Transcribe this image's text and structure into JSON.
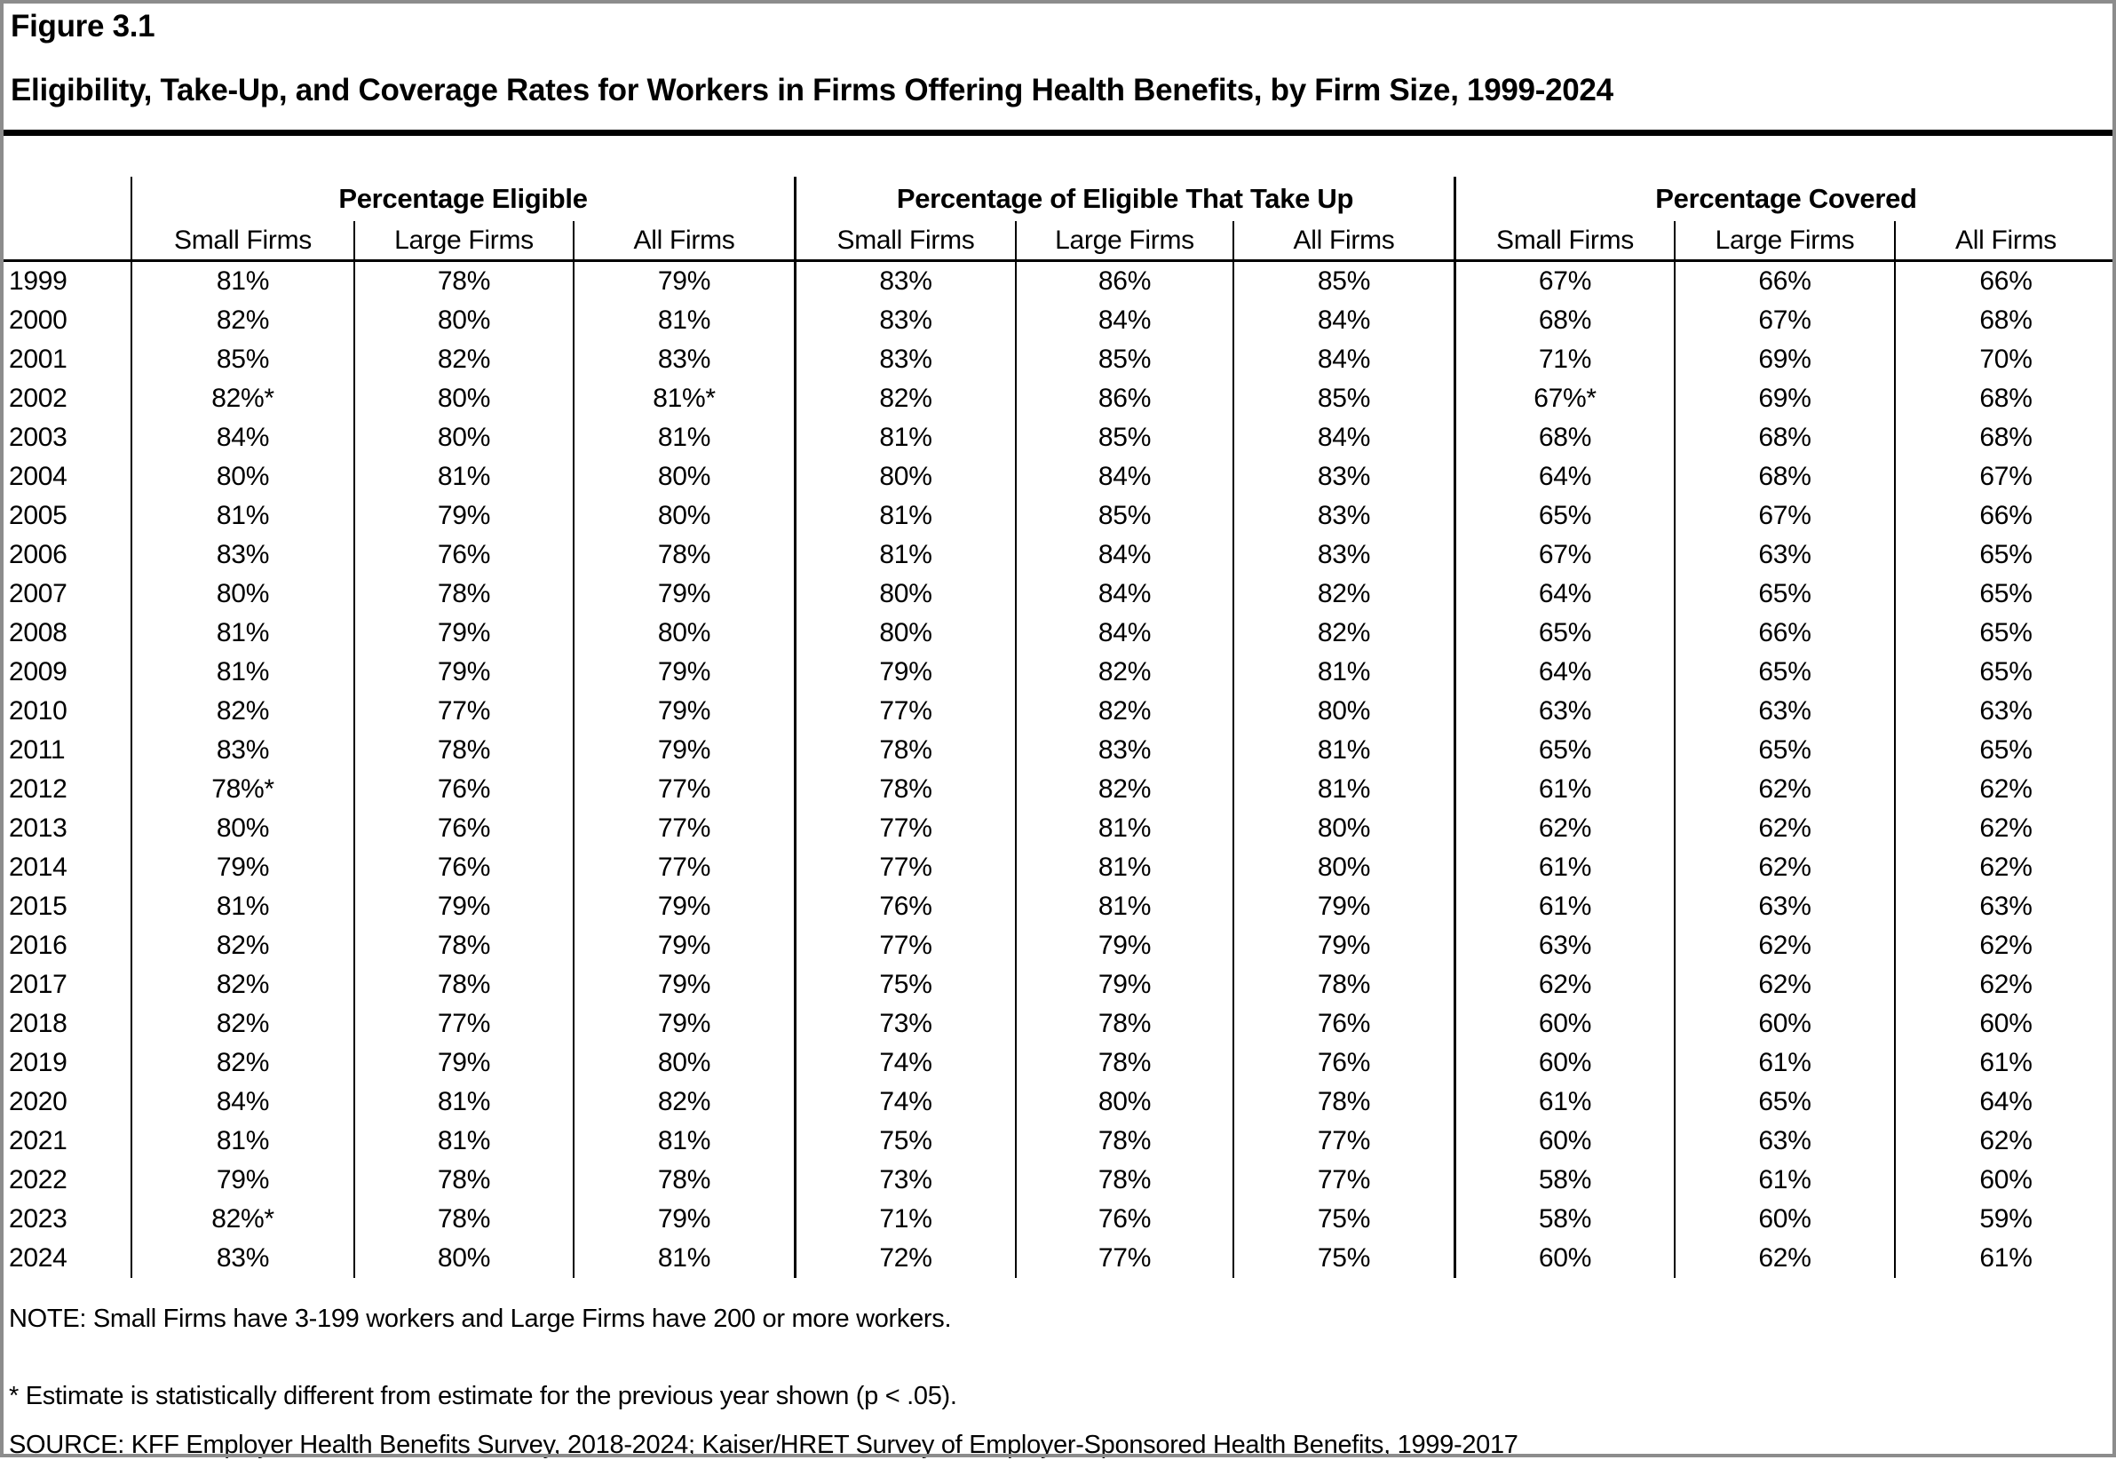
{
  "figure": {
    "label": "Figure 3.1",
    "title": "Eligibility, Take-Up, and Coverage Rates for Workers in Firms Offering Health Benefits, by Firm Size, 1999-2024"
  },
  "colors": {
    "rule": "#000000",
    "frame": "#8c8c8c",
    "text": "#000000",
    "background": "#ffffff"
  },
  "table": {
    "groups": [
      {
        "label": "Percentage Eligible"
      },
      {
        "label": "Percentage of Eligible That Take Up"
      },
      {
        "label": "Percentage Covered"
      }
    ],
    "columns": [
      "Small Firms",
      "Large Firms",
      "All Firms",
      "Small Firms",
      "Large Firms",
      "All Firms",
      "Small Firms",
      "Large Firms",
      "All Firms"
    ],
    "rows": [
      {
        "year": "1999",
        "cells": [
          "81%",
          "78%",
          "79%",
          "83%",
          "86%",
          "85%",
          "67%",
          "66%",
          "66%"
        ]
      },
      {
        "year": "2000",
        "cells": [
          "82%",
          "80%",
          "81%",
          "83%",
          "84%",
          "84%",
          "68%",
          "67%",
          "68%"
        ]
      },
      {
        "year": "2001",
        "cells": [
          "85%",
          "82%",
          "83%",
          "83%",
          "85%",
          "84%",
          "71%",
          "69%",
          "70%"
        ]
      },
      {
        "year": "2002",
        "cells": [
          "82%*",
          "80%",
          "81%*",
          "82%",
          "86%",
          "85%",
          "67%*",
          "69%",
          "68%"
        ]
      },
      {
        "year": "2003",
        "cells": [
          "84%",
          "80%",
          "81%",
          "81%",
          "85%",
          "84%",
          "68%",
          "68%",
          "68%"
        ]
      },
      {
        "year": "2004",
        "cells": [
          "80%",
          "81%",
          "80%",
          "80%",
          "84%",
          "83%",
          "64%",
          "68%",
          "67%"
        ]
      },
      {
        "year": "2005",
        "cells": [
          "81%",
          "79%",
          "80%",
          "81%",
          "85%",
          "83%",
          "65%",
          "67%",
          "66%"
        ]
      },
      {
        "year": "2006",
        "cells": [
          "83%",
          "76%",
          "78%",
          "81%",
          "84%",
          "83%",
          "67%",
          "63%",
          "65%"
        ]
      },
      {
        "year": "2007",
        "cells": [
          "80%",
          "78%",
          "79%",
          "80%",
          "84%",
          "82%",
          "64%",
          "65%",
          "65%"
        ]
      },
      {
        "year": "2008",
        "cells": [
          "81%",
          "79%",
          "80%",
          "80%",
          "84%",
          "82%",
          "65%",
          "66%",
          "65%"
        ]
      },
      {
        "year": "2009",
        "cells": [
          "81%",
          "79%",
          "79%",
          "79%",
          "82%",
          "81%",
          "64%",
          "65%",
          "65%"
        ]
      },
      {
        "year": "2010",
        "cells": [
          "82%",
          "77%",
          "79%",
          "77%",
          "82%",
          "80%",
          "63%",
          "63%",
          "63%"
        ]
      },
      {
        "year": "2011",
        "cells": [
          "83%",
          "78%",
          "79%",
          "78%",
          "83%",
          "81%",
          "65%",
          "65%",
          "65%"
        ]
      },
      {
        "year": "2012",
        "cells": [
          "78%*",
          "76%",
          "77%",
          "78%",
          "82%",
          "81%",
          "61%",
          "62%",
          "62%"
        ]
      },
      {
        "year": "2013",
        "cells": [
          "80%",
          "76%",
          "77%",
          "77%",
          "81%",
          "80%",
          "62%",
          "62%",
          "62%"
        ]
      },
      {
        "year": "2014",
        "cells": [
          "79%",
          "76%",
          "77%",
          "77%",
          "81%",
          "80%",
          "61%",
          "62%",
          "62%"
        ]
      },
      {
        "year": "2015",
        "cells": [
          "81%",
          "79%",
          "79%",
          "76%",
          "81%",
          "79%",
          "61%",
          "63%",
          "63%"
        ]
      },
      {
        "year": "2016",
        "cells": [
          "82%",
          "78%",
          "79%",
          "77%",
          "79%",
          "79%",
          "63%",
          "62%",
          "62%"
        ]
      },
      {
        "year": "2017",
        "cells": [
          "82%",
          "78%",
          "79%",
          "75%",
          "79%",
          "78%",
          "62%",
          "62%",
          "62%"
        ]
      },
      {
        "year": "2018",
        "cells": [
          "82%",
          "77%",
          "79%",
          "73%",
          "78%",
          "76%",
          "60%",
          "60%",
          "60%"
        ]
      },
      {
        "year": "2019",
        "cells": [
          "82%",
          "79%",
          "80%",
          "74%",
          "78%",
          "76%",
          "60%",
          "61%",
          "61%"
        ]
      },
      {
        "year": "2020",
        "cells": [
          "84%",
          "81%",
          "82%",
          "74%",
          "80%",
          "78%",
          "61%",
          "65%",
          "64%"
        ]
      },
      {
        "year": "2021",
        "cells": [
          "81%",
          "81%",
          "81%",
          "75%",
          "78%",
          "77%",
          "60%",
          "63%",
          "62%"
        ]
      },
      {
        "year": "2022",
        "cells": [
          "79%",
          "78%",
          "78%",
          "73%",
          "78%",
          "77%",
          "58%",
          "61%",
          "60%"
        ]
      },
      {
        "year": "2023",
        "cells": [
          "82%*",
          "78%",
          "79%",
          "71%",
          "76%",
          "75%",
          "58%",
          "60%",
          "59%"
        ]
      },
      {
        "year": "2024",
        "cells": [
          "83%",
          "80%",
          "81%",
          "72%",
          "77%",
          "75%",
          "60%",
          "62%",
          "61%"
        ]
      }
    ]
  },
  "notes": {
    "note": "NOTE: Small Firms have 3-199 workers and Large Firms have 200 or more workers.",
    "asterisk": " * Estimate is statistically different from estimate for the previous year shown (p < .05).",
    "source": "SOURCE: KFF Employer Health Benefits Survey, 2018-2024; Kaiser/HRET Survey of Employer-Sponsored Health Benefits, 1999-2017"
  },
  "chart_data": {
    "type": "table",
    "title": "Eligibility, Take-Up, and Coverage Rates for Workers in Firms Offering Health Benefits, by Firm Size, 1999-2024",
    "column_groups": [
      "Percentage Eligible",
      "Percentage of Eligible That Take Up",
      "Percentage Covered"
    ],
    "columns_per_group": [
      "Small Firms",
      "Large Firms",
      "All Firms"
    ],
    "years": [
      1999,
      2000,
      2001,
      2002,
      2003,
      2004,
      2005,
      2006,
      2007,
      2008,
      2009,
      2010,
      2011,
      2012,
      2013,
      2014,
      2015,
      2016,
      2017,
      2018,
      2019,
      2020,
      2021,
      2022,
      2023,
      2024
    ],
    "series": [
      {
        "name": "Percentage Eligible - Small Firms",
        "values": [
          81,
          82,
          85,
          82,
          84,
          80,
          81,
          83,
          80,
          81,
          81,
          82,
          83,
          78,
          80,
          79,
          81,
          82,
          82,
          82,
          82,
          84,
          81,
          79,
          82,
          83
        ]
      },
      {
        "name": "Percentage Eligible - Large Firms",
        "values": [
          78,
          80,
          82,
          80,
          80,
          81,
          79,
          76,
          78,
          79,
          79,
          77,
          78,
          76,
          76,
          76,
          79,
          78,
          78,
          77,
          79,
          81,
          81,
          78,
          78,
          80
        ]
      },
      {
        "name": "Percentage Eligible - All Firms",
        "values": [
          79,
          81,
          83,
          81,
          81,
          80,
          80,
          78,
          79,
          80,
          79,
          79,
          79,
          77,
          77,
          77,
          79,
          79,
          79,
          79,
          80,
          82,
          81,
          78,
          79,
          81
        ]
      },
      {
        "name": "Percentage of Eligible That Take Up - Small Firms",
        "values": [
          83,
          83,
          83,
          82,
          81,
          80,
          81,
          81,
          80,
          80,
          79,
          77,
          78,
          78,
          77,
          77,
          76,
          77,
          75,
          73,
          74,
          74,
          75,
          73,
          71,
          72
        ]
      },
      {
        "name": "Percentage of Eligible That Take Up - Large Firms",
        "values": [
          86,
          84,
          85,
          86,
          85,
          84,
          85,
          84,
          84,
          84,
          82,
          82,
          83,
          82,
          81,
          81,
          81,
          79,
          79,
          78,
          78,
          80,
          78,
          78,
          76,
          77
        ]
      },
      {
        "name": "Percentage of Eligible That Take Up - All Firms",
        "values": [
          85,
          84,
          84,
          85,
          84,
          83,
          83,
          83,
          82,
          82,
          81,
          80,
          81,
          81,
          80,
          80,
          79,
          79,
          78,
          76,
          76,
          78,
          77,
          77,
          75,
          75
        ]
      },
      {
        "name": "Percentage Covered - Small Firms",
        "values": [
          67,
          68,
          71,
          67,
          68,
          64,
          65,
          67,
          64,
          65,
          64,
          63,
          65,
          61,
          62,
          61,
          61,
          63,
          62,
          60,
          60,
          61,
          60,
          58,
          58,
          60
        ]
      },
      {
        "name": "Percentage Covered - Large Firms",
        "values": [
          66,
          67,
          69,
          69,
          68,
          68,
          67,
          63,
          65,
          66,
          65,
          63,
          65,
          62,
          62,
          62,
          63,
          62,
          62,
          60,
          61,
          65,
          63,
          61,
          60,
          62
        ]
      },
      {
        "name": "Percentage Covered - All Firms",
        "values": [
          66,
          68,
          70,
          68,
          68,
          67,
          66,
          65,
          65,
          65,
          65,
          63,
          65,
          62,
          62,
          62,
          63,
          62,
          62,
          60,
          61,
          64,
          62,
          60,
          59,
          61
        ]
      }
    ],
    "statistically_different_cells": [
      "2002 Eligible Small",
      "2002 Eligible All",
      "2002 Covered Small",
      "2012 Eligible Small",
      "2023 Eligible Small"
    ]
  }
}
